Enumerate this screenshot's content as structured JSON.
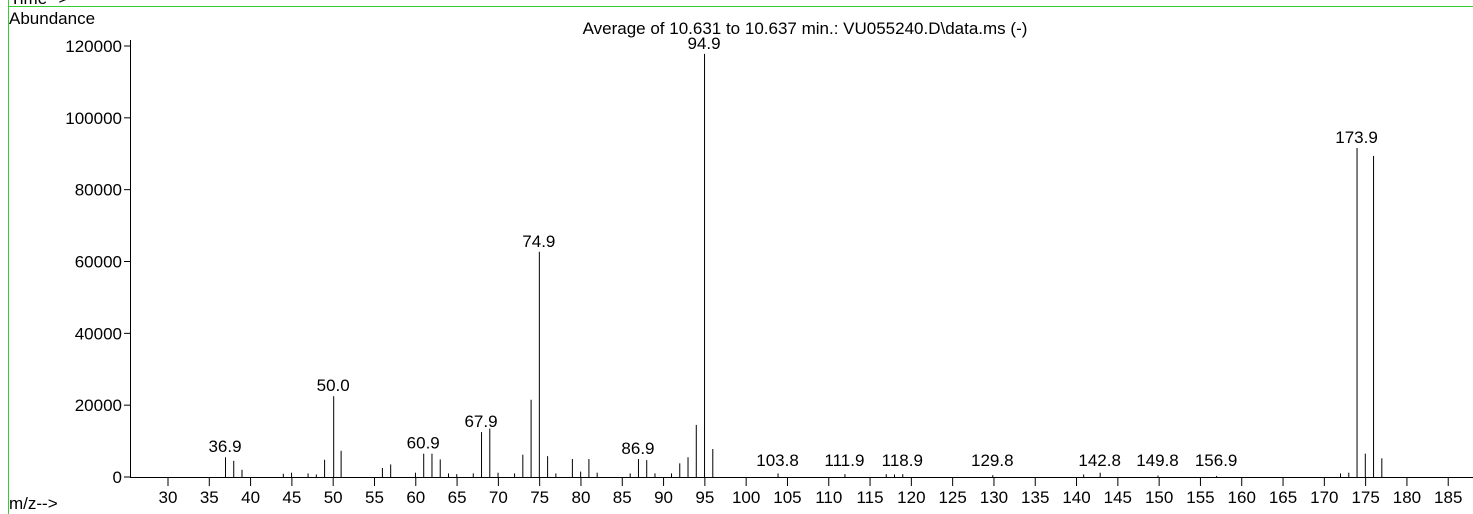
{
  "chart_data": {
    "type": "spectrum",
    "title": "Average of 10.631 to 10.637 min.: VU055240.D\\data.ms (-)",
    "header": "Time-->",
    "y_label": "Abundance",
    "x_label": "m/z-->",
    "color": "#000000",
    "frame_color": "#33cc33",
    "x": [
      36.9,
      37.9,
      38.9,
      43.9,
      44.9,
      46.9,
      47.9,
      48.9,
      50.0,
      50.9,
      55.9,
      56.9,
      59.9,
      60.9,
      61.9,
      62.9,
      63.9,
      64.9,
      66.9,
      67.9,
      68.9,
      69.9,
      71.9,
      72.9,
      73.9,
      74.9,
      75.9,
      76.9,
      78.9,
      79.9,
      80.9,
      81.9,
      85.9,
      86.9,
      87.9,
      88.9,
      90.9,
      91.9,
      92.9,
      93.9,
      94.9,
      95.9,
      103.8,
      111.9,
      116.9,
      117.9,
      118.9,
      129.8,
      140.8,
      142.8,
      149.8,
      156.9,
      171.9,
      172.9,
      173.9,
      174.9,
      175.9,
      176.9
    ],
    "values": [
      5500,
      4500,
      2000,
      900,
      1200,
      1000,
      700,
      4800,
      22500,
      7300,
      2500,
      3500,
      1200,
      6500,
      6500,
      4900,
      1000,
      800,
      1000,
      12500,
      13500,
      1200,
      1000,
      6200,
      21500,
      62700,
      5800,
      1000,
      5000,
      1500,
      5000,
      1200,
      1000,
      5000,
      4700,
      1000,
      1000,
      3800,
      5500,
      14500,
      117800,
      7800,
      1000,
      800,
      800,
      700,
      800,
      500,
      700,
      1200,
      400,
      300,
      1000,
      1200,
      91600,
      6500,
      89400,
      5200
    ],
    "peak_labels": [
      36.9,
      {
        "value": 50.0,
        "label": "50.0"
      },
      60.9,
      67.9,
      74.9,
      86.9,
      94.9,
      103.8,
      111.9,
      118.9,
      129.8,
      142.8,
      149.8,
      156.9,
      173.9
    ],
    "xlim": [
      25.4,
      188
    ],
    "ylim": [
      0,
      120000
    ],
    "xticks": [
      30,
      35,
      40,
      45,
      50,
      55,
      60,
      65,
      70,
      75,
      80,
      85,
      90,
      95,
      100,
      105,
      110,
      115,
      120,
      125,
      130,
      135,
      140,
      145,
      150,
      155,
      160,
      165,
      170,
      175,
      180,
      185
    ],
    "yticks": [
      0,
      20000,
      40000,
      60000,
      80000,
      100000,
      120000
    ]
  }
}
